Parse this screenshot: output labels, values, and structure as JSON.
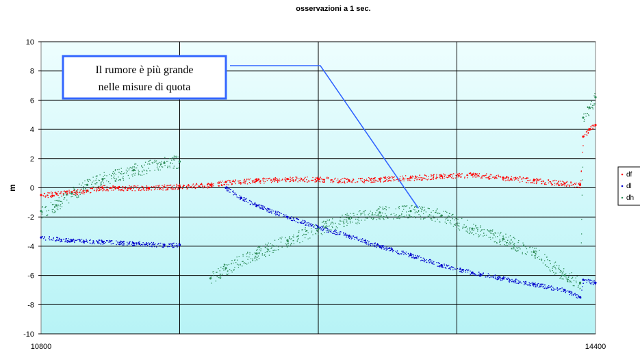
{
  "chart_data": {
    "type": "scatter",
    "title": "osservazioni a 1 sec.",
    "xlabel": "",
    "ylabel": "m",
    "xlim": [
      10800,
      14400
    ],
    "ylim": [
      -10,
      10
    ],
    "x_ticks": [
      "10800",
      "14400"
    ],
    "y_ticks": [
      "10",
      "8",
      "6",
      "4",
      "2",
      "0",
      "-2",
      "-4",
      "-6",
      "-8",
      "-10"
    ],
    "grid": true,
    "legend_position": "right",
    "annotation": "Il rumore è più grande\nnelle misure di quota",
    "series": [
      {
        "name": "df",
        "color": "#ff0000",
        "points": [
          [
            10800,
            -0.5
          ],
          [
            10900,
            -0.4
          ],
          [
            11000,
            -0.3
          ],
          [
            11100,
            -0.2
          ],
          [
            11200,
            0.0
          ],
          [
            11300,
            0.0
          ],
          [
            11500,
            0.0
          ],
          [
            11700,
            0.1
          ],
          [
            11900,
            0.2
          ],
          [
            12000,
            0.4
          ],
          [
            12200,
            0.5
          ],
          [
            12400,
            0.6
          ],
          [
            12600,
            0.6
          ],
          [
            12800,
            0.5
          ],
          [
            13000,
            0.6
          ],
          [
            13200,
            0.7
          ],
          [
            13400,
            0.8
          ],
          [
            13600,
            0.9
          ],
          [
            13800,
            0.7
          ],
          [
            14000,
            0.5
          ],
          [
            14200,
            0.3
          ],
          [
            14300,
            0.2
          ],
          [
            14320,
            3.5
          ],
          [
            14360,
            4.0
          ],
          [
            14400,
            4.3
          ]
        ]
      },
      {
        "name": "dl",
        "color": "#0000cc",
        "points": [
          [
            10800,
            -3.4
          ],
          [
            11000,
            -3.6
          ],
          [
            11200,
            -3.7
          ],
          [
            11400,
            -3.8
          ],
          [
            11600,
            -3.9
          ],
          [
            11700,
            -3.9
          ],
          [
            12000,
            0.0
          ],
          [
            12100,
            -0.7
          ],
          [
            12200,
            -1.2
          ],
          [
            12400,
            -2.0
          ],
          [
            12600,
            -2.7
          ],
          [
            12800,
            -3.3
          ],
          [
            13000,
            -4.0
          ],
          [
            13200,
            -4.6
          ],
          [
            13400,
            -5.3
          ],
          [
            13600,
            -5.8
          ],
          [
            13800,
            -6.2
          ],
          [
            14000,
            -6.6
          ],
          [
            14200,
            -7.0
          ],
          [
            14300,
            -7.5
          ],
          [
            14320,
            -6.3
          ],
          [
            14400,
            -6.5
          ]
        ]
      },
      {
        "name": "dh",
        "color": "#2e8b57",
        "points": [
          [
            10800,
            -1.6
          ],
          [
            10900,
            -1.2
          ],
          [
            11000,
            -0.4
          ],
          [
            11100,
            0.2
          ],
          [
            11200,
            0.6
          ],
          [
            11400,
            1.2
          ],
          [
            11600,
            1.7
          ],
          [
            11700,
            1.8
          ],
          [
            11900,
            -6.2
          ],
          [
            12000,
            -5.5
          ],
          [
            12200,
            -4.5
          ],
          [
            12400,
            -3.6
          ],
          [
            12600,
            -2.8
          ],
          [
            12800,
            -2.1
          ],
          [
            13000,
            -1.7
          ],
          [
            13200,
            -1.6
          ],
          [
            13400,
            -1.9
          ],
          [
            13600,
            -2.8
          ],
          [
            13800,
            -3.5
          ],
          [
            14000,
            -4.4
          ],
          [
            14200,
            -6.0
          ],
          [
            14300,
            -6.5
          ],
          [
            14320,
            4.8
          ],
          [
            14360,
            5.5
          ],
          [
            14400,
            6.2
          ]
        ]
      }
    ]
  },
  "colors": {
    "plot_band_light": "#e9ffff",
    "plot_band_dark": "#bff7f9",
    "annotation_border": "#3366ff",
    "annotation_line": "#3366ff"
  }
}
